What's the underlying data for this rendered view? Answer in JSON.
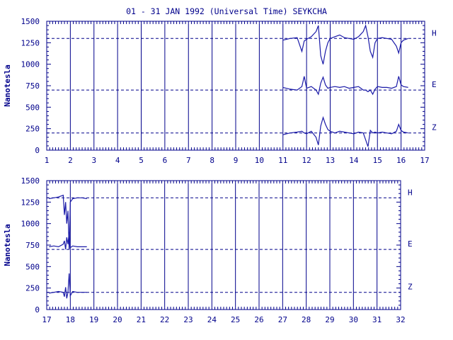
{
  "title": "01 - 31 JAN 1992 (Universal Time) SEYKCHA",
  "colors": {
    "axis": "#00008b",
    "trace": "#1a1aa8",
    "background": "#ffffff"
  },
  "chart_data": [
    {
      "type": "line",
      "panel": "top",
      "ylabel": "Nanotesla",
      "xlim": [
        1,
        17
      ],
      "ylim": [
        0,
        1500
      ],
      "x_ticks": [
        "1",
        "2",
        "3",
        "4",
        "5",
        "6",
        "7",
        "8",
        "9",
        "10",
        "11",
        "12",
        "13",
        "14",
        "15",
        "16",
        "17"
      ],
      "y_ticks": [
        "0",
        "250",
        "500",
        "750",
        "1000",
        "1250",
        "1500"
      ],
      "grid": "vertical lines at each day",
      "baselines": [
        {
          "label": "H",
          "value": 1300
        },
        {
          "label": "E",
          "value": 700
        },
        {
          "label": "Z",
          "value": 200
        }
      ],
      "series": [
        {
          "name": "H",
          "x": [
            11.0,
            11.3,
            11.6,
            11.8,
            11.9,
            12.0,
            12.2,
            12.4,
            12.5,
            12.6,
            12.7,
            12.8,
            12.9,
            13.0,
            13.2,
            13.4,
            13.6,
            13.8,
            14.0,
            14.2,
            14.4,
            14.5,
            14.6,
            14.7,
            14.8,
            14.9,
            15.0,
            15.2,
            15.4,
            15.6,
            15.8,
            15.9,
            16.0,
            16.1,
            16.3
          ],
          "y": [
            1280,
            1300,
            1310,
            1150,
            1270,
            1290,
            1320,
            1380,
            1450,
            1100,
            1000,
            1150,
            1250,
            1300,
            1320,
            1340,
            1310,
            1300,
            1290,
            1320,
            1380,
            1450,
            1320,
            1150,
            1080,
            1250,
            1300,
            1310,
            1300,
            1290,
            1210,
            1130,
            1250,
            1280,
            1300
          ]
        },
        {
          "name": "E",
          "x": [
            11.0,
            11.3,
            11.6,
            11.8,
            11.9,
            12.0,
            12.2,
            12.4,
            12.5,
            12.6,
            12.7,
            12.8,
            12.9,
            13.0,
            13.2,
            13.4,
            13.6,
            13.8,
            14.0,
            14.2,
            14.4,
            14.5,
            14.6,
            14.7,
            14.8,
            14.9,
            15.0,
            15.2,
            15.4,
            15.6,
            15.8,
            15.9,
            16.0,
            16.1,
            16.3
          ],
          "y": [
            730,
            710,
            700,
            740,
            860,
            720,
            740,
            700,
            650,
            780,
            850,
            760,
            720,
            730,
            740,
            730,
            740,
            720,
            730,
            740,
            700,
            700,
            680,
            700,
            650,
            710,
            740,
            730,
            730,
            720,
            740,
            860,
            760,
            740,
            730
          ]
        },
        {
          "name": "Z",
          "x": [
            11.0,
            11.3,
            11.6,
            11.8,
            11.9,
            12.0,
            12.2,
            12.4,
            12.5,
            12.6,
            12.7,
            12.8,
            12.9,
            13.0,
            13.2,
            13.4,
            13.6,
            13.8,
            14.0,
            14.2,
            14.4,
            14.5,
            14.6,
            14.7,
            14.8,
            14.9,
            15.0,
            15.2,
            15.4,
            15.6,
            15.8,
            15.9,
            16.0,
            16.1,
            16.3
          ],
          "y": [
            180,
            200,
            210,
            220,
            200,
            190,
            220,
            150,
            60,
            280,
            380,
            300,
            240,
            220,
            200,
            220,
            210,
            200,
            190,
            210,
            200,
            120,
            40,
            230,
            200,
            210,
            200,
            210,
            200,
            190,
            220,
            300,
            230,
            210,
            200
          ]
        }
      ]
    },
    {
      "type": "line",
      "panel": "bottom",
      "ylabel": "Nanotesla",
      "xlim": [
        17,
        32
      ],
      "ylim": [
        0,
        1500
      ],
      "x_ticks": [
        "17",
        "18",
        "19",
        "20",
        "21",
        "22",
        "23",
        "24",
        "25",
        "26",
        "27",
        "28",
        "29",
        "30",
        "31",
        "32"
      ],
      "y_ticks": [
        "0",
        "250",
        "500",
        "750",
        "1000",
        "1250",
        "1500"
      ],
      "grid": "vertical lines at each day",
      "baselines": [
        {
          "label": "H",
          "value": 1300
        },
        {
          "label": "E",
          "value": 700
        },
        {
          "label": "Z",
          "value": 200
        }
      ],
      "series": [
        {
          "name": "H",
          "x": [
            17.1,
            17.3,
            17.5,
            17.7,
            17.75,
            17.8,
            17.85,
            17.9,
            17.95,
            18.0,
            18.1,
            18.3,
            18.5,
            18.7
          ],
          "y": [
            1290,
            1300,
            1310,
            1330,
            1100,
            1250,
            1000,
            1150,
            700,
            1250,
            1290,
            1300,
            1300,
            1290
          ]
        },
        {
          "name": "E",
          "x": [
            17.1,
            17.3,
            17.5,
            17.7,
            17.75,
            17.8,
            17.85,
            17.9,
            17.95,
            18.0,
            18.1,
            18.3,
            18.5,
            18.7
          ],
          "y": [
            730,
            740,
            730,
            760,
            800,
            700,
            840,
            760,
            900,
            720,
            740,
            730,
            730,
            730
          ]
        },
        {
          "name": "Z",
          "x": [
            17.1,
            17.3,
            17.5,
            17.7,
            17.75,
            17.8,
            17.85,
            17.9,
            17.95,
            18.0,
            18.1,
            18.3,
            18.5,
            18.7
          ],
          "y": [
            190,
            200,
            210,
            200,
            150,
            260,
            130,
            200,
            420,
            160,
            210,
            200,
            200,
            200
          ]
        }
      ]
    }
  ]
}
